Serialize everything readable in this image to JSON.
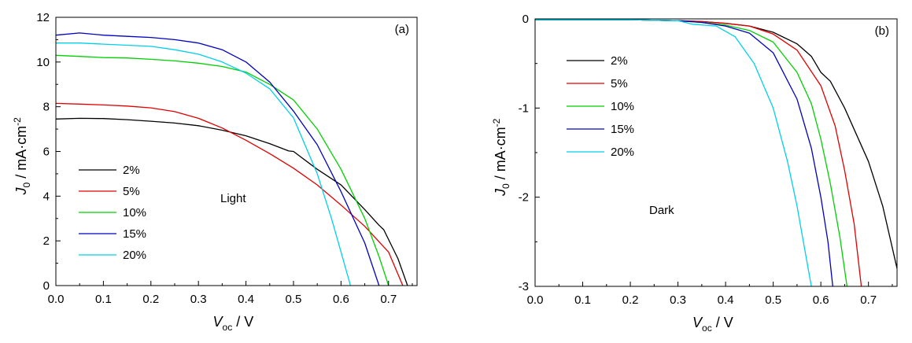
{
  "chart_data": [
    {
      "type": "line",
      "panel_label": "(a)",
      "annotation": "Light",
      "xlabel_main": "V",
      "xlabel_sub": "oc",
      "xlabel_unit": " / V",
      "ylabel_main": "J",
      "ylabel_sub": "0",
      "ylabel_unit": " / mA·cm",
      "ylabel_sup": "-2",
      "xlim": [
        0.0,
        0.76
      ],
      "ylim": [
        0,
        12
      ],
      "xticks": [
        "0.0",
        "0.1",
        "0.2",
        "0.3",
        "0.4",
        "0.5",
        "0.6",
        "0.7"
      ],
      "yticks": [
        "0",
        "2",
        "4",
        "6",
        "8",
        "10",
        "12"
      ],
      "legend_position": "center-left",
      "series": [
        {
          "name": "2%",
          "color": "#000000",
          "x": [
            0,
            0.05,
            0.1,
            0.15,
            0.2,
            0.25,
            0.3,
            0.35,
            0.4,
            0.45,
            0.49,
            0.5,
            0.55,
            0.6,
            0.65,
            0.68,
            0.69,
            0.72,
            0.74
          ],
          "y": [
            7.45,
            7.48,
            7.47,
            7.42,
            7.35,
            7.27,
            7.15,
            6.95,
            6.7,
            6.35,
            6.02,
            6.0,
            5.2,
            4.5,
            3.4,
            2.7,
            2.5,
            1.2,
            0
          ]
        },
        {
          "name": "5%",
          "color": "#e00000",
          "x": [
            0,
            0.05,
            0.1,
            0.15,
            0.2,
            0.25,
            0.3,
            0.35,
            0.4,
            0.45,
            0.5,
            0.55,
            0.6,
            0.65,
            0.7,
            0.73
          ],
          "y": [
            8.15,
            8.12,
            8.08,
            8.03,
            7.95,
            7.78,
            7.48,
            7.05,
            6.5,
            5.9,
            5.25,
            4.5,
            3.6,
            2.65,
            1.5,
            0
          ]
        },
        {
          "name": "10%",
          "color": "#00d000",
          "x": [
            0,
            0.05,
            0.1,
            0.15,
            0.2,
            0.25,
            0.3,
            0.35,
            0.4,
            0.45,
            0.5,
            0.55,
            0.6,
            0.65,
            0.68,
            0.7
          ],
          "y": [
            10.3,
            10.25,
            10.2,
            10.18,
            10.12,
            10.05,
            9.95,
            9.8,
            9.55,
            9.0,
            8.3,
            7.0,
            5.2,
            3.0,
            1.3,
            0
          ]
        },
        {
          "name": "15%",
          "color": "#0000c0",
          "x": [
            0,
            0.05,
            0.1,
            0.15,
            0.2,
            0.25,
            0.3,
            0.35,
            0.4,
            0.45,
            0.5,
            0.55,
            0.6,
            0.65,
            0.68
          ],
          "y": [
            11.2,
            11.3,
            11.2,
            11.15,
            11.1,
            11.0,
            10.85,
            10.55,
            10.0,
            9.1,
            7.8,
            6.3,
            4.2,
            1.9,
            0
          ]
        },
        {
          "name": "20%",
          "color": "#00d0e8",
          "x": [
            0,
            0.05,
            0.1,
            0.15,
            0.2,
            0.25,
            0.3,
            0.35,
            0.4,
            0.45,
            0.5,
            0.55,
            0.58,
            0.6,
            0.62
          ],
          "y": [
            10.85,
            10.85,
            10.8,
            10.75,
            10.7,
            10.55,
            10.35,
            10.0,
            9.5,
            8.8,
            7.5,
            5.0,
            3.0,
            1.5,
            0
          ]
        }
      ]
    },
    {
      "type": "line",
      "panel_label": "(b)",
      "annotation": "Dark",
      "xlabel_main": "V",
      "xlabel_sub": "oc",
      "xlabel_unit": " / V",
      "ylabel_main": "J",
      "ylabel_sub": "0",
      "ylabel_unit": " / mA·cm",
      "ylabel_sup": "-2",
      "xlim": [
        0.0,
        0.76
      ],
      "ylim": [
        -3,
        0
      ],
      "xticks": [
        "0.0",
        "0.1",
        "0.2",
        "0.3",
        "0.4",
        "0.5",
        "0.6",
        "0.7"
      ],
      "yticks": [
        "-3",
        "-2",
        "-1",
        "0"
      ],
      "legend_position": "top-left",
      "series": [
        {
          "name": "2%",
          "color": "#000000",
          "x": [
            0,
            0.1,
            0.2,
            0.3,
            0.35,
            0.4,
            0.45,
            0.5,
            0.55,
            0.58,
            0.6,
            0.62,
            0.65,
            0.7,
            0.73,
            0.76
          ],
          "y": [
            -0.01,
            -0.01,
            -0.01,
            -0.02,
            -0.03,
            -0.05,
            -0.08,
            -0.15,
            -0.28,
            -0.42,
            -0.6,
            -0.7,
            -1.0,
            -1.6,
            -2.1,
            -2.8
          ]
        },
        {
          "name": "5%",
          "color": "#e00000",
          "x": [
            0,
            0.1,
            0.2,
            0.3,
            0.35,
            0.4,
            0.45,
            0.5,
            0.55,
            0.6,
            0.63,
            0.65,
            0.67,
            0.685
          ],
          "y": [
            -0.01,
            -0.01,
            -0.01,
            -0.02,
            -0.03,
            -0.05,
            -0.08,
            -0.17,
            -0.35,
            -0.75,
            -1.2,
            -1.7,
            -2.3,
            -3.0
          ]
        },
        {
          "name": "10%",
          "color": "#00d000",
          "x": [
            0,
            0.1,
            0.2,
            0.3,
            0.35,
            0.4,
            0.45,
            0.5,
            0.55,
            0.58,
            0.6,
            0.62,
            0.64,
            0.655
          ],
          "y": [
            -0.01,
            -0.01,
            -0.01,
            -0.02,
            -0.04,
            -0.07,
            -0.13,
            -0.26,
            -0.6,
            -0.95,
            -1.35,
            -1.85,
            -2.45,
            -3.0
          ]
        },
        {
          "name": "15%",
          "color": "#0000c0",
          "x": [
            0,
            0.1,
            0.2,
            0.3,
            0.35,
            0.4,
            0.45,
            0.5,
            0.55,
            0.58,
            0.6,
            0.615,
            0.625
          ],
          "y": [
            -0.01,
            -0.01,
            -0.01,
            -0.02,
            -0.04,
            -0.08,
            -0.16,
            -0.38,
            -0.9,
            -1.45,
            -2.0,
            -2.5,
            -3.0
          ]
        },
        {
          "name": "20%",
          "color": "#00d0e8",
          "x": [
            0,
            0.1,
            0.2,
            0.3,
            0.33,
            0.38,
            0.42,
            0.46,
            0.5,
            0.53,
            0.55,
            0.57,
            0.58
          ],
          "y": [
            -0.01,
            -0.01,
            -0.01,
            -0.02,
            -0.06,
            -0.08,
            -0.2,
            -0.5,
            -1.0,
            -1.6,
            -2.1,
            -2.7,
            -3.0
          ]
        }
      ]
    }
  ]
}
